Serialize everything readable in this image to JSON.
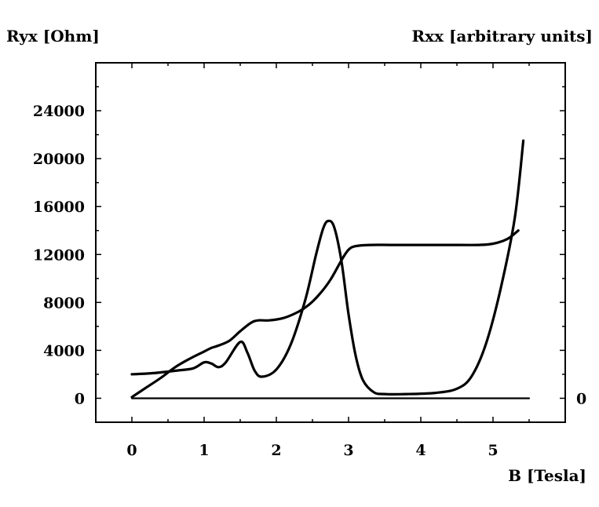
{
  "chart_data": {
    "type": "line",
    "y_left_label": "Ryx [Ohm]",
    "y_right_label": "Rxx [arbitrary units]",
    "xlabel": "B [Tesla]",
    "x_ticks": [
      "0",
      "1",
      "2",
      "3",
      "4",
      "5"
    ],
    "y_left_ticks": [
      "0",
      "4000",
      "8000",
      "12000",
      "16000",
      "20000",
      "24000"
    ],
    "y_right_ticks": [
      "0"
    ],
    "xlim": [
      -0.5,
      6.0
    ],
    "ylim": [
      -2000,
      28000
    ],
    "grid": false,
    "legend": "none",
    "series": [
      {
        "x": [
          0.0,
          0.2,
          0.4,
          0.6,
          0.8,
          1.0,
          1.1,
          1.2,
          1.35,
          1.5,
          1.65,
          1.75,
          1.9,
          2.1,
          2.3,
          2.45,
          2.6,
          2.75,
          2.9,
          3.0,
          3.1,
          3.3,
          3.6,
          4.0,
          4.4,
          4.8,
          5.0,
          5.2,
          5.35
        ],
        "y": [
          100,
          900,
          1700,
          2600,
          3300,
          3900,
          4200,
          4400,
          4800,
          5600,
          6300,
          6500,
          6500,
          6700,
          7200,
          7800,
          8700,
          9900,
          11500,
          12400,
          12700,
          12800,
          12800,
          12800,
          12800,
          12800,
          12900,
          13300,
          14000
        ]
      },
      {
        "x": [
          0.0,
          0.3,
          0.6,
          0.85,
          1.0,
          1.1,
          1.2,
          1.3,
          1.5,
          1.6,
          1.7,
          1.8,
          2.0,
          2.2,
          2.4,
          2.55,
          2.65,
          2.72,
          2.8,
          2.9,
          3.0,
          3.1,
          3.2,
          3.35,
          3.5,
          3.8,
          4.2,
          4.5,
          4.7,
          4.9,
          5.1,
          5.3,
          5.42
        ],
        "y": [
          2000,
          2100,
          2300,
          2500,
          3000,
          2900,
          2600,
          3000,
          4700,
          3800,
          2300,
          1800,
          2400,
          4500,
          8200,
          12000,
          14200,
          14800,
          14300,
          11500,
          7000,
          3500,
          1500,
          500,
          350,
          350,
          450,
          800,
          1800,
          4500,
          9000,
          15000,
          21500
        ]
      },
      {
        "x": [
          0.0,
          5.5
        ],
        "y": [
          0,
          0
        ]
      }
    ]
  }
}
